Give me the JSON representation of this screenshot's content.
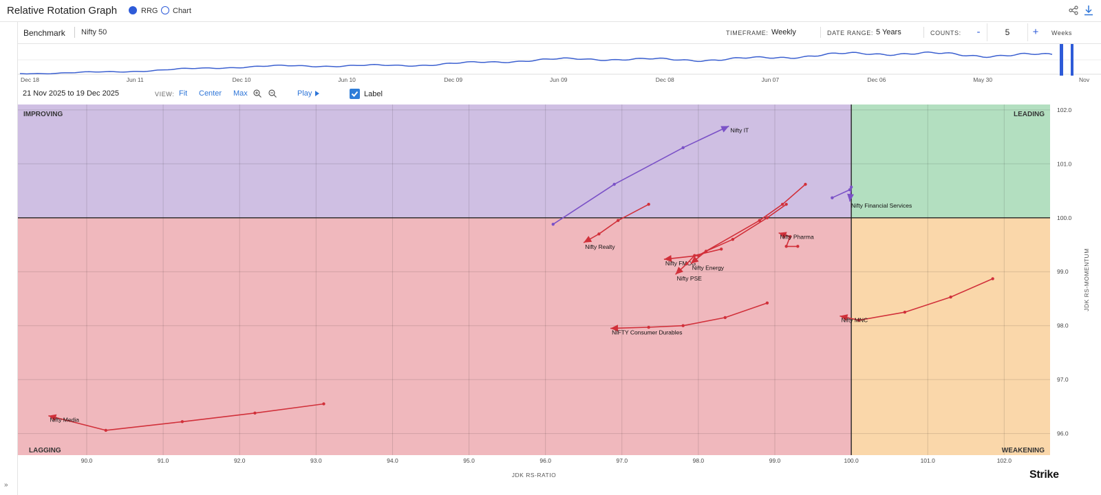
{
  "app": {
    "title": "Relative Rotation Graph"
  },
  "view_toggle": {
    "rrg_label": "RRG",
    "chart_label": "Chart",
    "selected": "RRG"
  },
  "controls": {
    "benchmark_label": "Benchmark",
    "benchmark_value": "Nifty 50",
    "timeframe_label": "TIMEFRAME:",
    "timeframe_value": "Weekly",
    "date_range_label": "DATE RANGE:",
    "date_range_value": "5 Years",
    "counts_label": "COUNTS:",
    "counts_minus": "-",
    "counts_value": "5",
    "counts_plus": "+",
    "counts_unit": "Weeks"
  },
  "brush": {
    "date_labels": [
      "Dec 18",
      "Jun 11",
      "Dec 10",
      "Jun 10",
      "Dec 09",
      "Jun 09",
      "Dec 08",
      "Jun 07",
      "Dec 06",
      "May 30",
      "Nov"
    ],
    "line_color": "#3a5fd0"
  },
  "view": {
    "range_text": "21 Nov 2025 to 19 Dec 2025",
    "view_label": "VIEW:",
    "fit": "Fit",
    "center": "Center",
    "max": "Max",
    "play": "Play",
    "label_toggle": "Label",
    "label_checked": true
  },
  "brand": {
    "name": "Strike"
  },
  "chart_data": {
    "type": "scatter",
    "xlabel": "JDK RS-RATIO",
    "ylabel": "JDK RS-MOMENTUM",
    "xlim": [
      89.1,
      102.6
    ],
    "ylim": [
      95.6,
      102.1
    ],
    "xticks": [
      90.0,
      91.0,
      92.0,
      93.0,
      94.0,
      95.0,
      96.0,
      97.0,
      98.0,
      99.0,
      100.0,
      101.0,
      102.0
    ],
    "yticks": [
      96.0,
      97.0,
      98.0,
      99.0,
      100.0,
      101.0,
      102.0
    ],
    "grid": true,
    "center": [
      100.0,
      100.0
    ],
    "quadrants": [
      {
        "name": "IMPROVING",
        "color": "#cfbfe3"
      },
      {
        "name": "LEADING",
        "color": "#b3dfc0"
      },
      {
        "name": "LAGGING",
        "color": "#f0b8bd"
      },
      {
        "name": "WEAKENING",
        "color": "#fad7aa"
      }
    ],
    "series": [
      {
        "name": "Nifty IT",
        "color": "#7b52c7",
        "points": [
          [
            96.1,
            99.88
          ],
          [
            96.9,
            100.62
          ],
          [
            97.8,
            101.3
          ],
          [
            98.4,
            101.7
          ]
        ]
      },
      {
        "name": "Nifty Financial Services",
        "color": "#7b52c7",
        "points": [
          [
            99.75,
            100.37
          ],
          [
            99.98,
            100.52
          ],
          [
            100.0,
            100.57
          ],
          [
            99.98,
            100.3
          ]
        ]
      },
      {
        "name": "Nifty Realty",
        "color": "#d1303a",
        "points": [
          [
            97.35,
            100.25
          ],
          [
            96.95,
            99.95
          ],
          [
            96.7,
            99.7
          ],
          [
            96.5,
            99.54
          ]
        ]
      },
      {
        "name": "Nifty Pharma",
        "color": "#d1303a",
        "points": [
          [
            99.3,
            99.47
          ],
          [
            99.15,
            99.47
          ],
          [
            99.2,
            99.65
          ],
          [
            99.05,
            99.72
          ]
        ]
      },
      {
        "name": "Nifty FMCG",
        "color": "#d1303a",
        "points": [
          [
            99.4,
            100.62
          ],
          [
            99.1,
            100.25
          ],
          [
            98.8,
            99.95
          ],
          [
            98.0,
            99.3
          ],
          [
            97.55,
            99.23
          ]
        ]
      },
      {
        "name": "Nifty Energy",
        "color": "#d1303a",
        "points": [
          [
            99.15,
            100.25
          ],
          [
            98.9,
            100.0
          ],
          [
            98.45,
            99.6
          ],
          [
            98.1,
            99.38
          ],
          [
            97.9,
            99.15
          ]
        ]
      },
      {
        "name": "Nifty PSE",
        "color": "#d1303a",
        "points": [
          [
            98.3,
            99.42
          ],
          [
            97.95,
            99.3
          ],
          [
            97.85,
            99.15
          ],
          [
            97.7,
            98.95
          ]
        ]
      },
      {
        "name": "NIFTY Consumer Durables",
        "color": "#d1303a",
        "points": [
          [
            98.9,
            98.42
          ],
          [
            98.35,
            98.15
          ],
          [
            97.8,
            98.0
          ],
          [
            97.35,
            97.97
          ],
          [
            96.85,
            97.95
          ]
        ]
      },
      {
        "name": "Nifty MNC",
        "color": "#d1303a",
        "points": [
          [
            101.85,
            98.87
          ],
          [
            101.3,
            98.53
          ],
          [
            100.7,
            98.25
          ],
          [
            100.1,
            98.1
          ],
          [
            99.85,
            98.18
          ]
        ]
      },
      {
        "name": "Nifty Media",
        "color": "#d1303a",
        "points": [
          [
            93.1,
            96.55
          ],
          [
            92.2,
            96.38
          ],
          [
            91.25,
            96.22
          ],
          [
            90.25,
            96.06
          ],
          [
            89.5,
            96.33
          ]
        ]
      }
    ]
  }
}
